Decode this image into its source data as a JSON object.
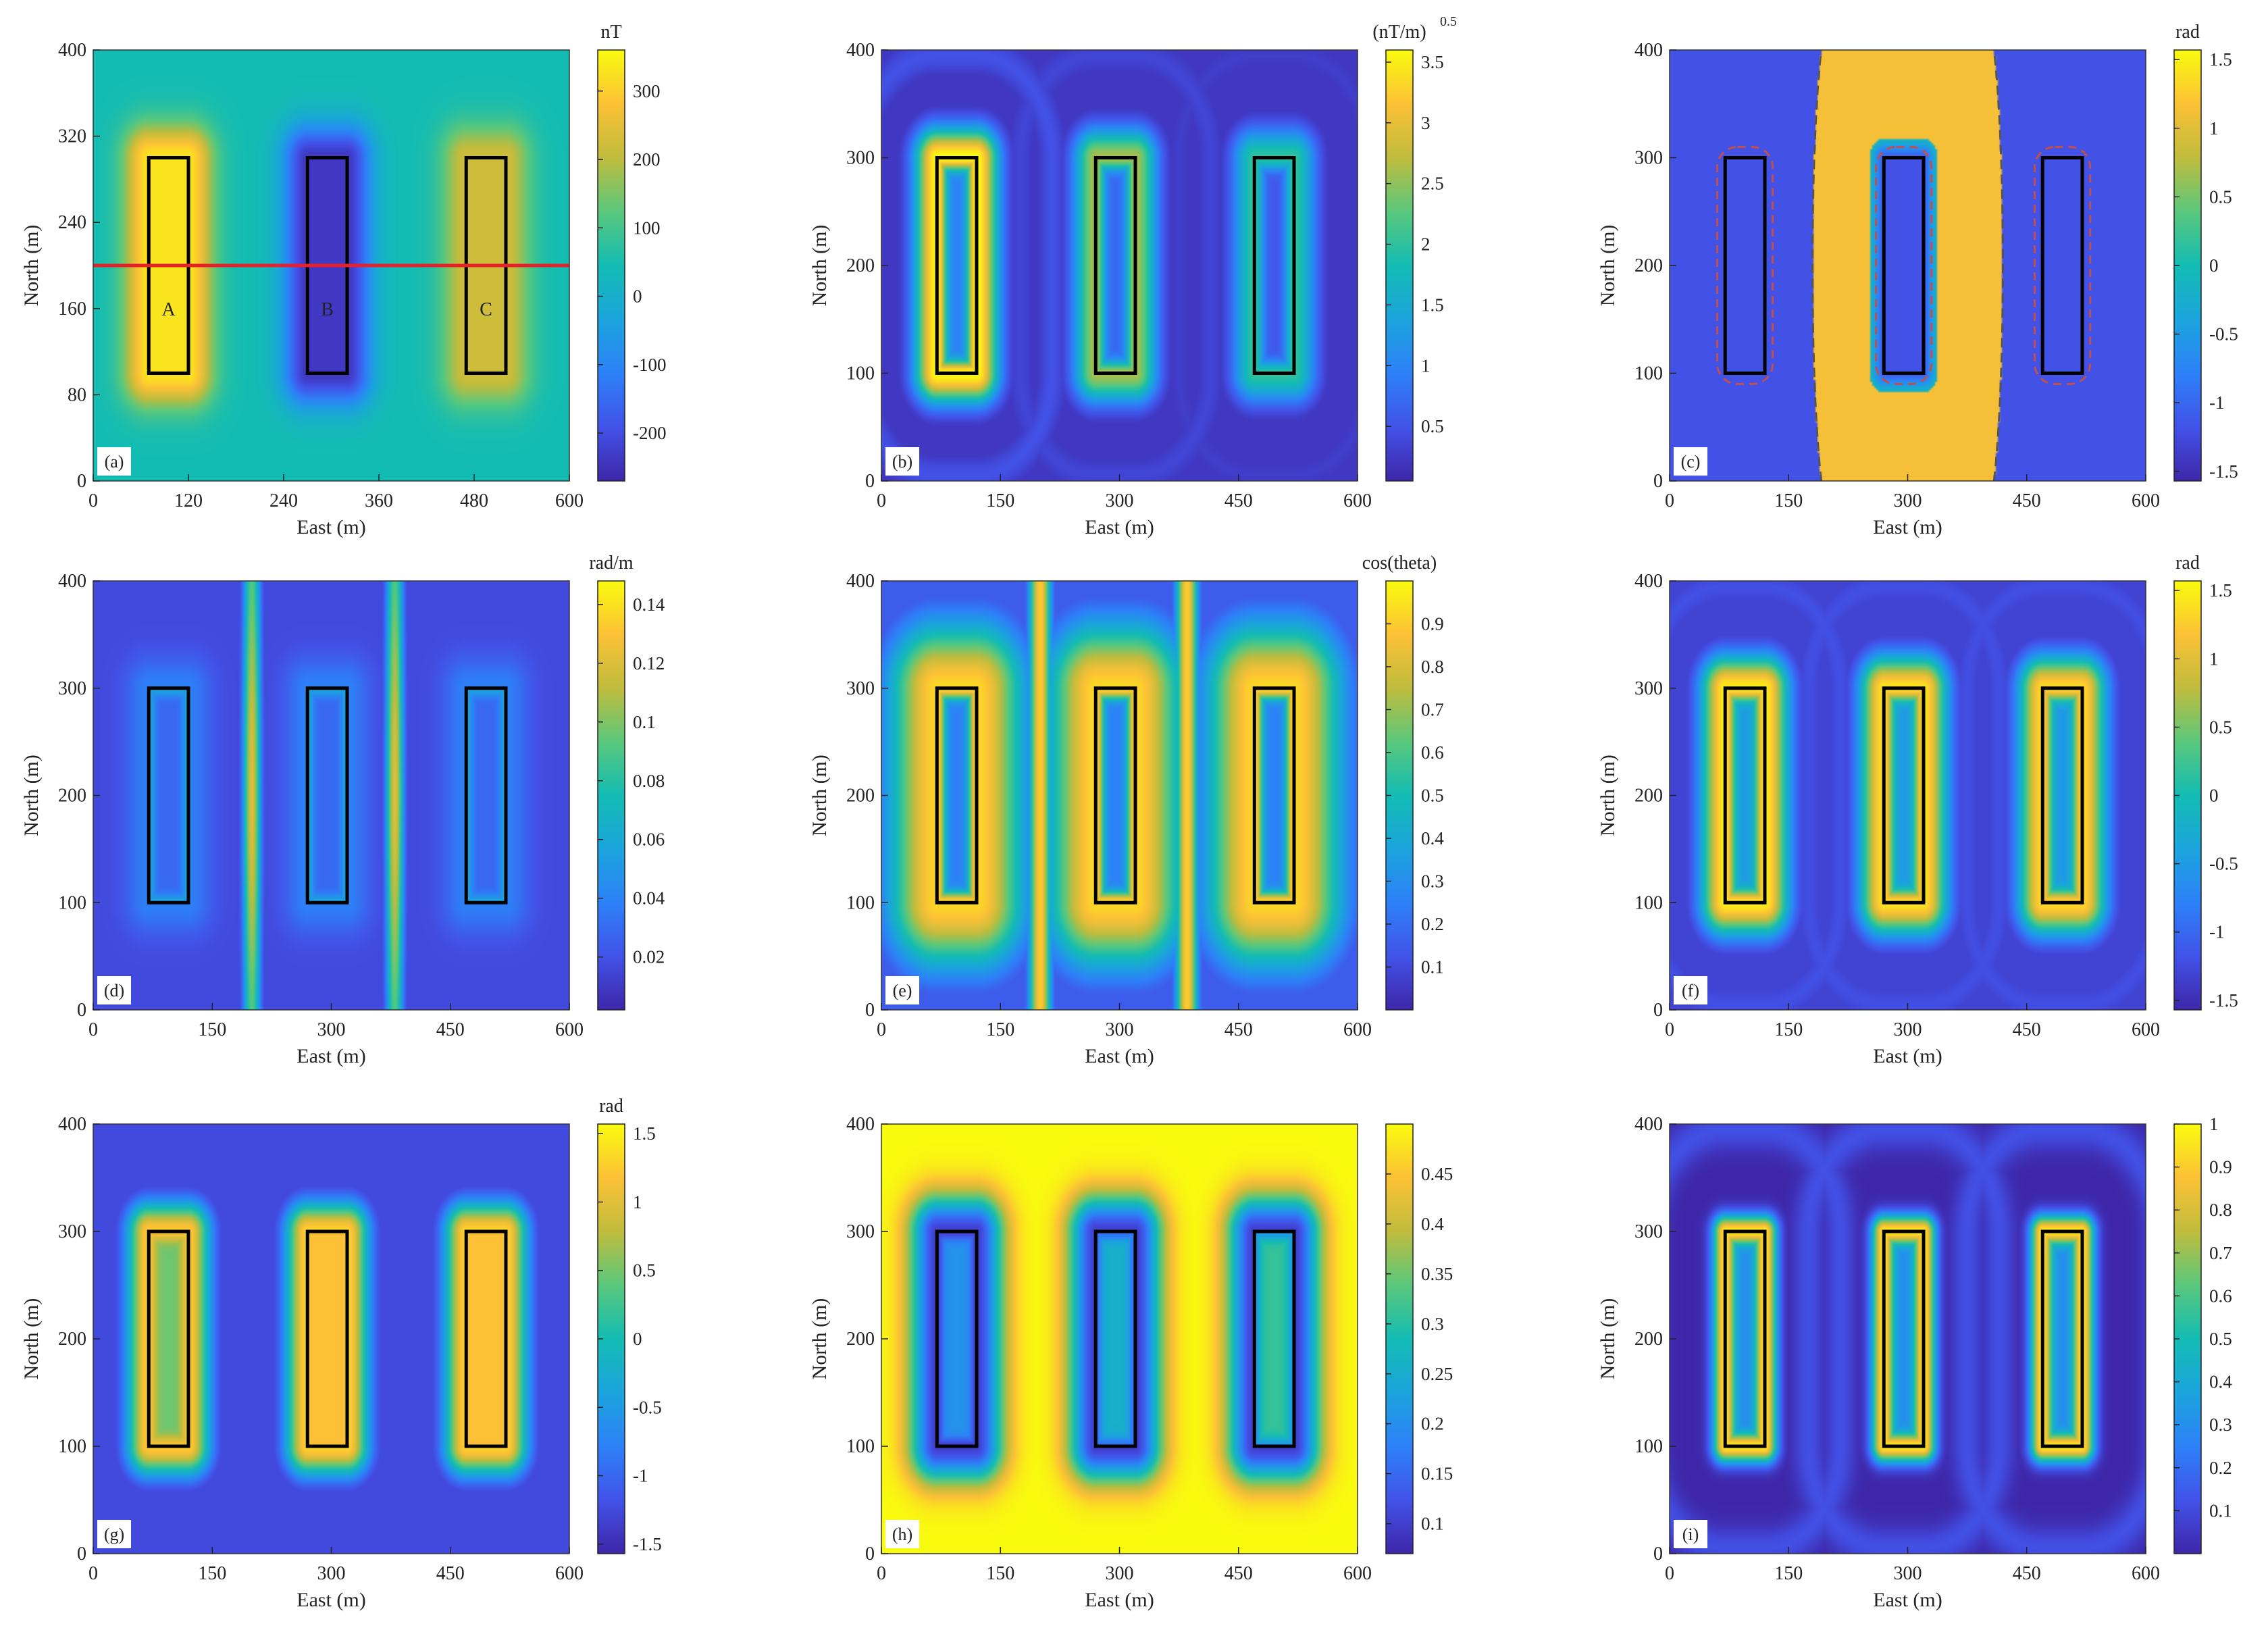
{
  "chart_data": [
    {
      "type": "heatmap",
      "panel_label": "(a)",
      "xlabel": "East (m)",
      "ylabel": "North (m)",
      "xlim": [
        0,
        600
      ],
      "ylim": [
        0,
        400
      ],
      "xticks": [
        0,
        120,
        240,
        360,
        480,
        600
      ],
      "yticks": [
        0,
        80,
        160,
        240,
        320,
        400
      ],
      "colorbar": {
        "unit": "nT",
        "range": [
          -270,
          360
        ],
        "ticks": [
          -200,
          -100,
          0,
          100,
          200,
          300
        ],
        "tick_labels": [
          "-200",
          "-100",
          "0",
          "100",
          "200",
          "300"
        ]
      },
      "bodies": [
        {
          "label": "A",
          "x": [
            70,
            120
          ],
          "y": [
            100,
            300
          ]
        },
        {
          "label": "B",
          "x": [
            270,
            320
          ],
          "y": [
            100,
            300
          ]
        },
        {
          "label": "C",
          "x": [
            470,
            520
          ],
          "y": [
            100,
            300
          ]
        }
      ],
      "profile": {
        "y": 200,
        "x": [
          0,
          600
        ],
        "color": "#e8202a"
      },
      "field": {
        "kind": "rtp",
        "peaks": [
          0.95,
          0.05,
          0.78
        ],
        "bg": 0.5,
        "spread": 22
      }
    },
    {
      "type": "heatmap",
      "panel_label": "(b)",
      "xlabel": "East (m)",
      "ylabel": "North (m)",
      "xlim": [
        0,
        600
      ],
      "ylim": [
        0,
        400
      ],
      "xticks": [
        0,
        150,
        300,
        450,
        600
      ],
      "yticks": [
        0,
        100,
        200,
        300,
        400
      ],
      "colorbar": {
        "unit": "(nT/m)",
        "unit_sup": "0.5",
        "range": [
          0.05,
          3.6
        ],
        "ticks": [
          0.5,
          1,
          1.5,
          2,
          2.5,
          3,
          3.5
        ],
        "tick_labels": [
          "0.5",
          "1",
          "1.5",
          "2",
          "2.5",
          "3",
          "3.5"
        ]
      },
      "bodies": [
        {
          "x": [
            70,
            120
          ],
          "y": [
            100,
            300
          ]
        },
        {
          "x": [
            270,
            320
          ],
          "y": [
            100,
            300
          ]
        },
        {
          "x": [
            470,
            520
          ],
          "y": [
            100,
            300
          ]
        }
      ],
      "field": {
        "kind": "edge",
        "amps": [
          1.0,
          0.72,
          0.55
        ],
        "inner": 0.25,
        "bg": 0.05,
        "spread": 20
      }
    },
    {
      "type": "heatmap",
      "panel_label": "(c)",
      "xlabel": "East (m)",
      "ylabel": "North (m)",
      "xlim": [
        0,
        600
      ],
      "ylim": [
        0,
        400
      ],
      "xticks": [
        0,
        150,
        300,
        450,
        600
      ],
      "yticks": [
        0,
        100,
        200,
        300,
        400
      ],
      "colorbar": {
        "unit": "rad",
        "range": [
          -1.57,
          1.57
        ],
        "ticks": [
          -1.5,
          -1,
          -0.5,
          0,
          0.5,
          1,
          1.5
        ],
        "tick_labels": [
          "-1.5",
          "-1",
          "-0.5",
          "0",
          "0.5",
          "1",
          "1.5"
        ]
      },
      "bodies": [
        {
          "x": [
            70,
            120
          ],
          "y": [
            100,
            300
          ]
        },
        {
          "x": [
            270,
            320
          ],
          "y": [
            100,
            300
          ]
        },
        {
          "x": [
            470,
            520
          ],
          "y": [
            100,
            300
          ]
        }
      ],
      "field": {
        "kind": "tilt_c"
      }
    },
    {
      "type": "heatmap",
      "panel_label": "(d)",
      "xlabel": "East (m)",
      "ylabel": "North (m)",
      "xlim": [
        0,
        600
      ],
      "ylim": [
        0,
        400
      ],
      "xticks": [
        0,
        150,
        300,
        450,
        600
      ],
      "yticks": [
        0,
        100,
        200,
        300,
        400
      ],
      "colorbar": {
        "unit": "rad/m",
        "range": [
          0.002,
          0.148
        ],
        "ticks": [
          0.02,
          0.04,
          0.06,
          0.08,
          0.1,
          0.12,
          0.14
        ],
        "tick_labels": [
          "0.02",
          "0.04",
          "0.06",
          "0.08",
          "0.1",
          "0.12",
          "0.14"
        ]
      },
      "bodies": [
        {
          "x": [
            70,
            120
          ],
          "y": [
            100,
            300
          ]
        },
        {
          "x": [
            270,
            320
          ],
          "y": [
            100,
            300
          ]
        },
        {
          "x": [
            470,
            520
          ],
          "y": [
            100,
            300
          ]
        }
      ],
      "field": {
        "kind": "thdr"
      }
    },
    {
      "type": "heatmap",
      "panel_label": "(e)",
      "xlabel": "East (m)",
      "ylabel": "North (m)",
      "xlim": [
        0,
        600
      ],
      "ylim": [
        0,
        400
      ],
      "xticks": [
        0,
        150,
        300,
        450,
        600
      ],
      "yticks": [
        0,
        100,
        200,
        300,
        400
      ],
      "colorbar": {
        "unit": "cos(theta)",
        "range": [
          0.0,
          1.0
        ],
        "ticks": [
          0.1,
          0.2,
          0.3,
          0.4,
          0.5,
          0.6,
          0.7,
          0.8,
          0.9
        ],
        "tick_labels": [
          "0.1",
          "0.2",
          "0.3",
          "0.4",
          "0.5",
          "0.6",
          "0.7",
          "0.8",
          "0.9"
        ]
      },
      "bodies": [
        {
          "x": [
            70,
            120
          ],
          "y": [
            100,
            300
          ]
        },
        {
          "x": [
            270,
            320
          ],
          "y": [
            100,
            300
          ]
        },
        {
          "x": [
            470,
            520
          ],
          "y": [
            100,
            300
          ]
        }
      ],
      "field": {
        "kind": "costheta"
      }
    },
    {
      "type": "heatmap",
      "panel_label": "(f)",
      "xlabel": "East (m)",
      "ylabel": "North (m)",
      "xlim": [
        0,
        600
      ],
      "ylim": [
        0,
        400
      ],
      "xticks": [
        0,
        150,
        300,
        450,
        600
      ],
      "yticks": [
        0,
        100,
        200,
        300,
        400
      ],
      "colorbar": {
        "unit": "rad",
        "range": [
          -1.57,
          1.57
        ],
        "ticks": [
          -1.5,
          -1,
          -0.5,
          0,
          0.5,
          1,
          1.5
        ],
        "tick_labels": [
          "-1.5",
          "-1",
          "-0.5",
          "0",
          "0.5",
          "1",
          "1.5"
        ]
      },
      "bodies": [
        {
          "x": [
            70,
            120
          ],
          "y": [
            100,
            300
          ]
        },
        {
          "x": [
            270,
            320
          ],
          "y": [
            100,
            300
          ]
        },
        {
          "x": [
            470,
            520
          ],
          "y": [
            100,
            300
          ]
        }
      ],
      "field": {
        "kind": "edge",
        "amps": [
          0.97,
          0.95,
          0.93
        ],
        "inner": 0.35,
        "bg": 0.08,
        "spread": 22
      }
    },
    {
      "type": "heatmap",
      "panel_label": "(g)",
      "xlabel": "East (m)",
      "ylabel": "North (m)",
      "xlim": [
        0,
        600
      ],
      "ylim": [
        0,
        400
      ],
      "xticks": [
        0,
        150,
        300,
        450,
        600
      ],
      "yticks": [
        0,
        100,
        200,
        300,
        400
      ],
      "colorbar": {
        "unit": "rad",
        "range": [
          -1.57,
          1.57
        ],
        "ticks": [
          -1.5,
          -1,
          -0.5,
          0,
          0.5,
          1,
          1.5
        ],
        "tick_labels": [
          "-1.5",
          "-1",
          "-0.5",
          "0",
          "0.5",
          "1",
          "1.5"
        ]
      },
      "bodies": [
        {
          "x": [
            70,
            120
          ],
          "y": [
            100,
            300
          ]
        },
        {
          "x": [
            270,
            320
          ],
          "y": [
            100,
            300
          ]
        },
        {
          "x": [
            470,
            520
          ],
          "y": [
            100,
            300
          ]
        }
      ],
      "field": {
        "kind": "filled",
        "amps": [
          0.9,
          0.92,
          0.92
        ],
        "inner": 0.72,
        "bg": 0.1,
        "spread": 20
      }
    },
    {
      "type": "heatmap",
      "panel_label": "(h)",
      "xlabel": "East (m)",
      "ylabel": "North (m)",
      "xlim": [
        0,
        600
      ],
      "ylim": [
        0,
        400
      ],
      "xticks": [
        0,
        150,
        300,
        450,
        600
      ],
      "yticks": [
        0,
        100,
        200,
        300,
        400
      ],
      "colorbar": {
        "unit": "",
        "range": [
          0.07,
          0.5
        ],
        "ticks": [
          0.1,
          0.15,
          0.2,
          0.25,
          0.3,
          0.35,
          0.4,
          0.45
        ],
        "tick_labels": [
          "0.1",
          "0.15",
          "0.2",
          "0.25",
          "0.3",
          "0.35",
          "0.4",
          "0.45"
        ]
      },
      "bodies": [
        {
          "x": [
            70,
            120
          ],
          "y": [
            100,
            300
          ]
        },
        {
          "x": [
            270,
            320
          ],
          "y": [
            100,
            300
          ]
        },
        {
          "x": [
            470,
            520
          ],
          "y": [
            100,
            300
          ]
        }
      ],
      "field": {
        "kind": "inverted",
        "inner": [
          0.3,
          0.42,
          0.55
        ]
      }
    },
    {
      "type": "heatmap",
      "panel_label": "(i)",
      "xlabel": "East (m)",
      "ylabel": "North (m)",
      "xlim": [
        0,
        600
      ],
      "ylim": [
        0,
        400
      ],
      "xticks": [
        0,
        150,
        300,
        450,
        600
      ],
      "yticks": [
        0,
        100,
        200,
        300,
        400
      ],
      "colorbar": {
        "unit": "",
        "range": [
          0.0,
          1.0
        ],
        "ticks": [
          0.1,
          0.2,
          0.3,
          0.4,
          0.5,
          0.6,
          0.7,
          0.8,
          0.9,
          1
        ],
        "tick_labels": [
          "0.1",
          "0.2",
          "0.3",
          "0.4",
          "0.5",
          "0.6",
          "0.7",
          "0.8",
          "0.9",
          "1"
        ]
      },
      "bodies": [
        {
          "x": [
            70,
            120
          ],
          "y": [
            100,
            300
          ]
        },
        {
          "x": [
            270,
            320
          ],
          "y": [
            100,
            300
          ]
        },
        {
          "x": [
            470,
            520
          ],
          "y": [
            100,
            300
          ]
        }
      ],
      "field": {
        "kind": "edge",
        "amps": [
          0.97,
          0.97,
          0.97
        ],
        "inner": 0.3,
        "bg": 0.0,
        "spread": 11
      }
    }
  ]
}
